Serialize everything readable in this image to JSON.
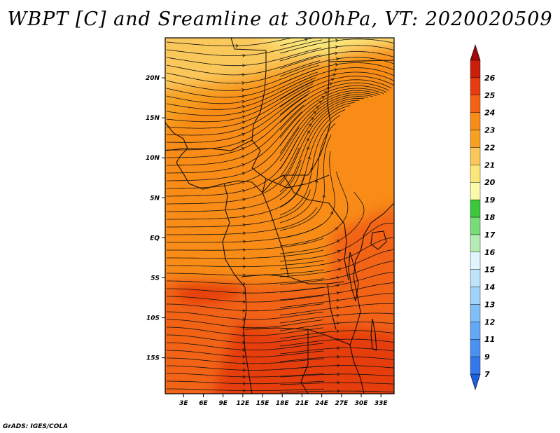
{
  "chart_data": {
    "type": "heatmap",
    "title": "WBPT [C] and Sreamline at 300hPa, VT: 2020020509",
    "variable": "Wet bulb potential temperature [C] with streamlines",
    "level": "300hPa",
    "valid_time": "2020020509",
    "x_ticks": [
      "3E",
      "6E",
      "9E",
      "12E",
      "15E",
      "18E",
      "21E",
      "24E",
      "27E",
      "30E",
      "33E"
    ],
    "x_tick_values": [
      3,
      6,
      9,
      12,
      15,
      18,
      21,
      24,
      27,
      30,
      33
    ],
    "y_ticks": [
      "20N",
      "15N",
      "10N",
      "5N",
      "EQ",
      "5S",
      "10S",
      "15S"
    ],
    "y_tick_values": [
      20,
      15,
      10,
      5,
      0,
      -5,
      -10,
      -15
    ],
    "xlim": [
      0.2,
      35
    ],
    "ylim": [
      -19.5,
      25
    ],
    "colorbar": {
      "labels": [
        "7",
        "9",
        "11",
        "12",
        "13",
        "14",
        "15",
        "16",
        "17",
        "18",
        "19",
        "20",
        "21",
        "22",
        "23",
        "24",
        "25",
        "26"
      ],
      "colors": [
        "#1e60e0",
        "#3478eb",
        "#4a91f2",
        "#64a8f5",
        "#80bef8",
        "#a0d2fa",
        "#bee4fc",
        "#e1f5fd",
        "#b4ecb4",
        "#78dc78",
        "#3cc83c",
        "#fafaaa",
        "#fbe678",
        "#fac85a",
        "#f8a022",
        "#f88c18",
        "#f26414",
        "#e63c10",
        "#c81e0a",
        "#a00a08"
      ]
    },
    "fill_regions": [
      {
        "region": "far north, around 22-25N",
        "wbpt": 20
      },
      {
        "region": "northwest corner and 14-22N band west",
        "wbpt": 21
      },
      {
        "region": "central Africa 0-15N",
        "wbpt": 22
      },
      {
        "region": "east Africa 5N-10S around 27-33E",
        "wbpt": 23
      },
      {
        "region": "southern belt 6S-19S",
        "wbpt": 24
      }
    ],
    "streamline_flow": "predominantly westerly with anticyclonic curvature over the Sahel and northeast"
  },
  "footer": {
    "credit": "GrADS: IGES/COLA"
  }
}
